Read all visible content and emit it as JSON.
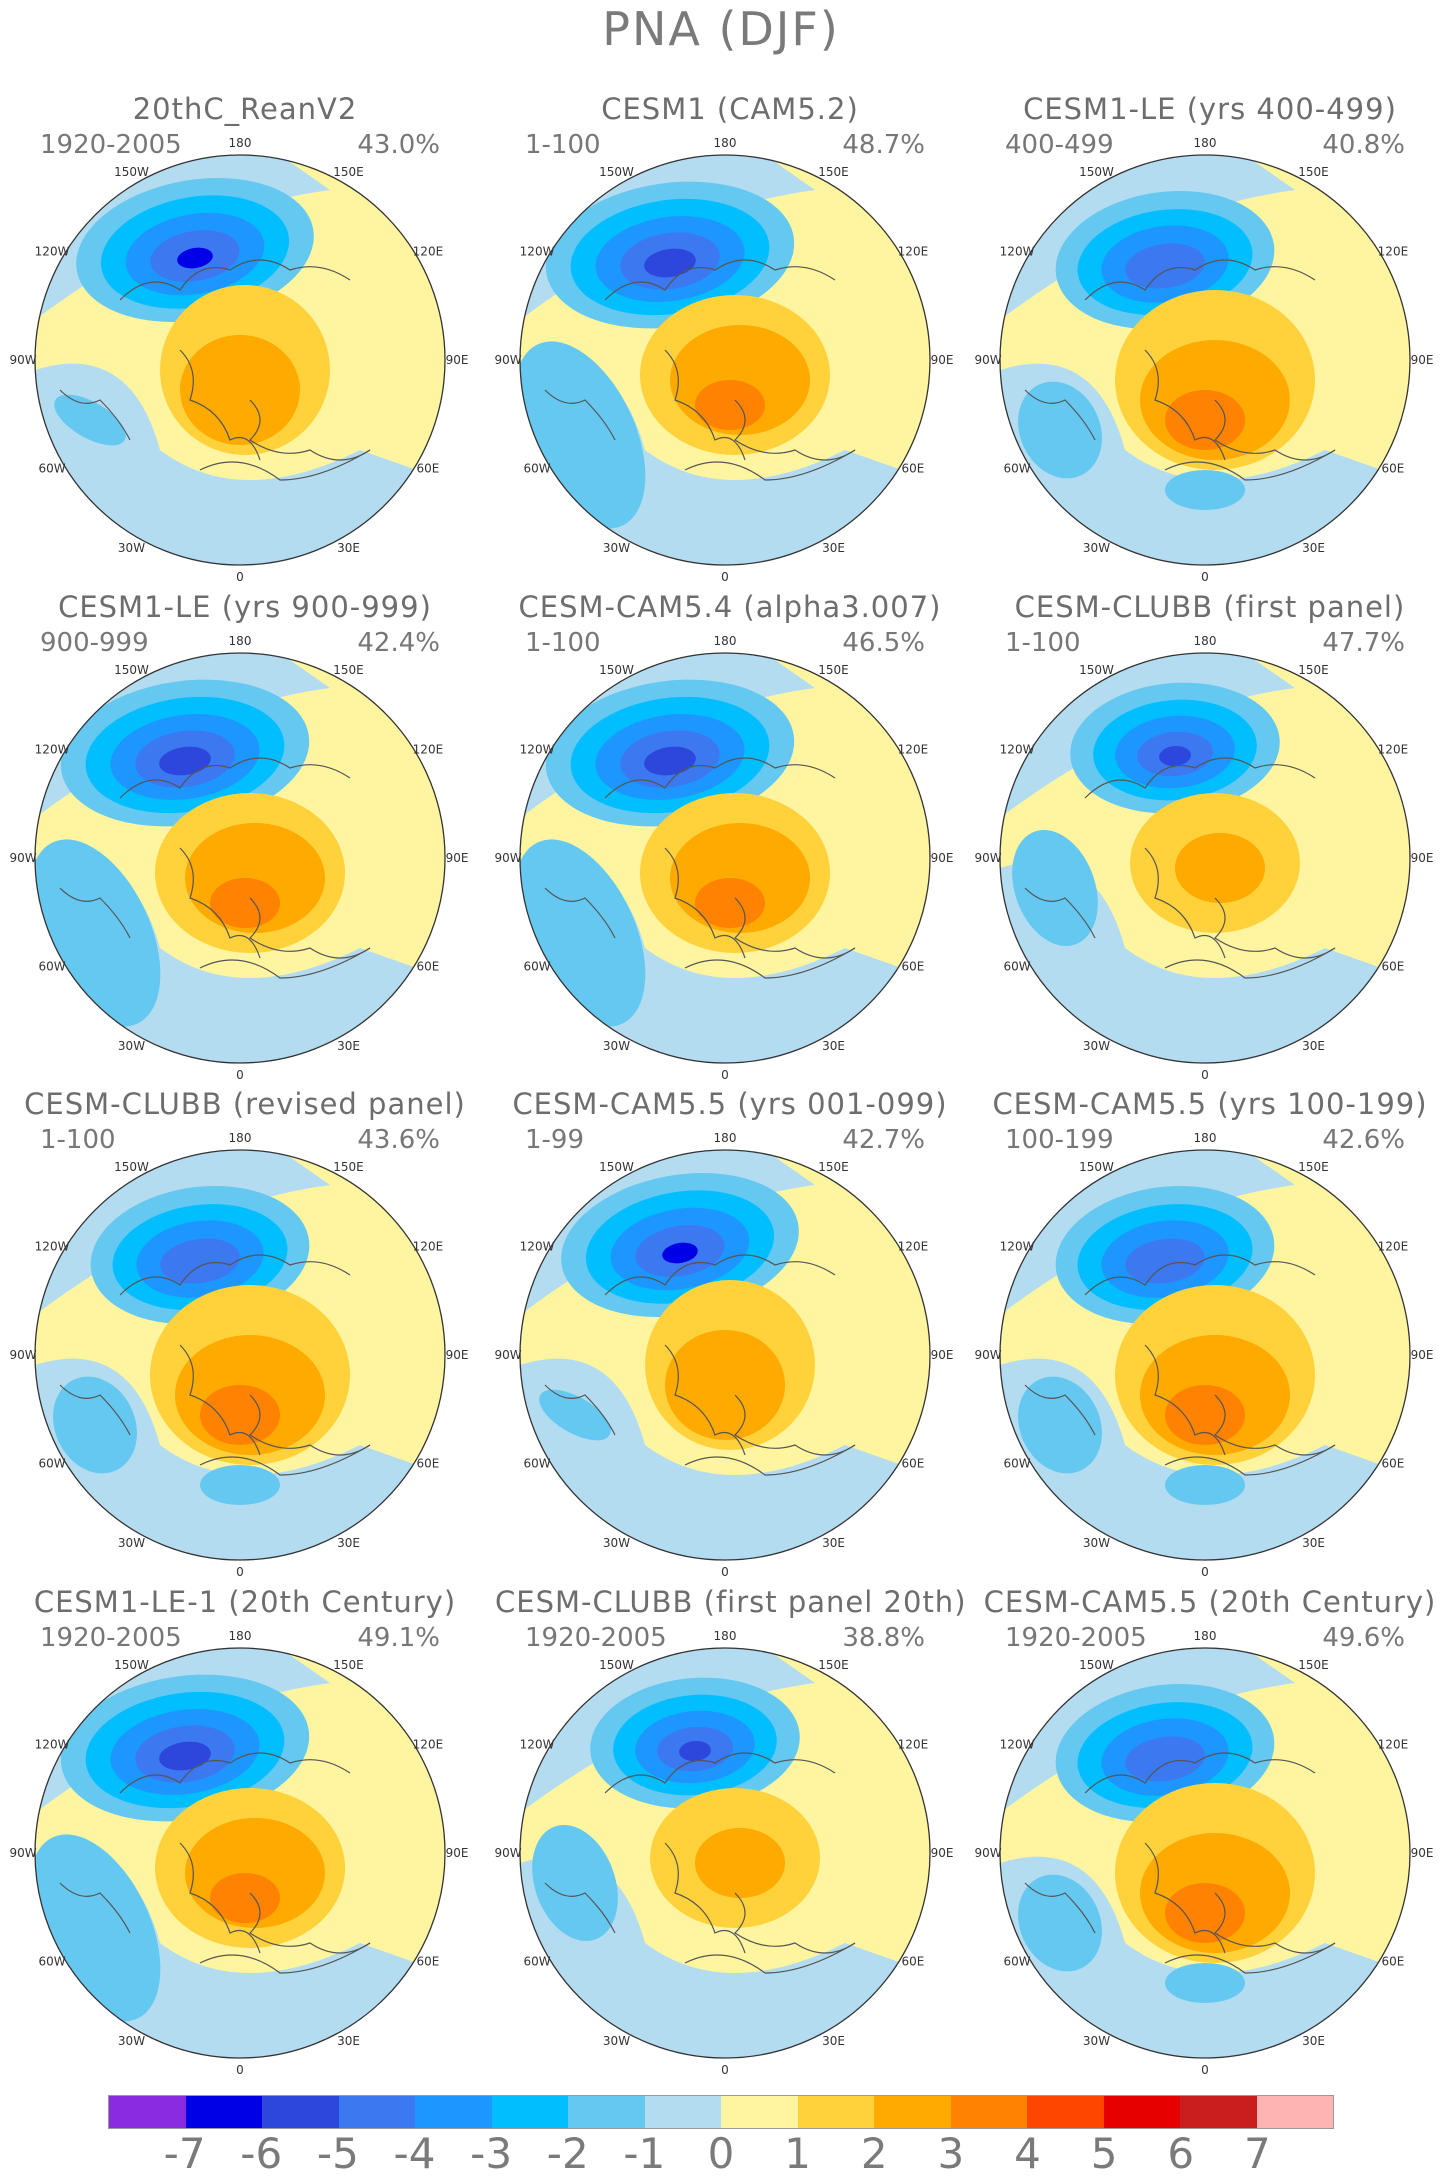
{
  "title": "PNA (DJF)",
  "lon_labels": [
    "180",
    "150E",
    "120E",
    "90E",
    "60E",
    "30E",
    "0",
    "30W",
    "60W",
    "90W",
    "120W",
    "150W"
  ],
  "panels": [
    {
      "title": "20thC_ReanV2",
      "years": "1920-2005",
      "pct": "43.0%",
      "variant": 0
    },
    {
      "title": "CESM1 (CAM5.2)",
      "years": "1-100",
      "pct": "48.7%",
      "variant": 1
    },
    {
      "title": "CESM1-LE (yrs 400-499)",
      "years": "400-499",
      "pct": "40.8%",
      "variant": 2
    },
    {
      "title": "CESM1-LE (yrs 900-999)",
      "years": "900-999",
      "pct": "42.4%",
      "variant": 1
    },
    {
      "title": "CESM-CAM5.4 (alpha3.007)",
      "years": "1-100",
      "pct": "46.5%",
      "variant": 1
    },
    {
      "title": "CESM-CLUBB (first panel)",
      "years": "1-100",
      "pct": "47.7%",
      "variant": 3
    },
    {
      "title": "CESM-CLUBB (revised panel)",
      "years": "1-100",
      "pct": "43.6%",
      "variant": 2
    },
    {
      "title": "CESM-CAM5.5 (yrs 001-099)",
      "years": "1-99",
      "pct": "42.7%",
      "variant": 0
    },
    {
      "title": "CESM-CAM5.5 (yrs 100-199)",
      "years": "100-199",
      "pct": "42.6%",
      "variant": 2
    },
    {
      "title": "CESM1-LE-1 (20th Century)",
      "years": "1920-2005",
      "pct": "49.1%",
      "variant": 1
    },
    {
      "title": "CESM-CLUBB (first panel 20th)",
      "years": "1920-2005",
      "pct": "38.8%",
      "variant": 3
    },
    {
      "title": "CESM-CAM5.5 (20th Century)",
      "years": "1920-2005",
      "pct": "49.6%",
      "variant": 2
    }
  ],
  "colorbar": {
    "colors": [
      "#8a2be2",
      "#0000e6",
      "#2d46dc",
      "#3c78f0",
      "#1e96ff",
      "#00beff",
      "#64c8f0",
      "#b4dcf0",
      "#fff5a0",
      "#ffd23c",
      "#ffaa00",
      "#ff8200",
      "#ff4600",
      "#e60000",
      "#c81e1e",
      "#ffb4b4"
    ],
    "ticks": [
      "-7",
      "-6",
      "-5",
      "-4",
      "-3",
      "-2",
      "-1",
      "0",
      "1",
      "2",
      "3",
      "4",
      "5",
      "6",
      "7"
    ]
  }
}
